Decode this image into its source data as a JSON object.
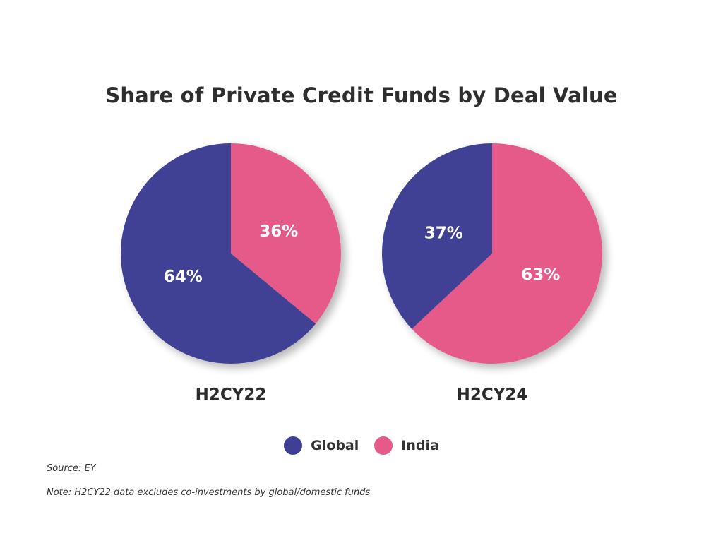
{
  "chart_data": {
    "type": "pie",
    "title": "Share of Private Credit Funds by Deal Value",
    "pies": [
      {
        "name": "H2CY22",
        "slices": [
          {
            "label": "Global",
            "value": 64,
            "display": "64%"
          },
          {
            "label": "India",
            "value": 36,
            "display": "36%"
          }
        ]
      },
      {
        "name": "H2CY24",
        "slices": [
          {
            "label": "Global",
            "value": 37,
            "display": "37%"
          },
          {
            "label": "India",
            "value": 63,
            "display": "63%"
          }
        ]
      }
    ],
    "legend": {
      "placement": "bottom-center",
      "items": [
        {
          "label": "Global",
          "color": "#3f3f95"
        },
        {
          "label": "India",
          "color": "#e65a8a"
        }
      ]
    }
  },
  "footer": {
    "source": "Source: EY",
    "note": "Note: H2CY22 data excludes co-investments by global/domestic funds"
  }
}
